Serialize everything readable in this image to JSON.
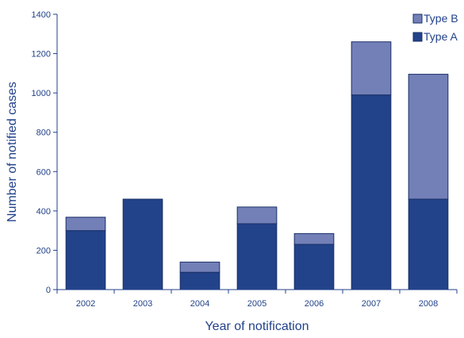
{
  "chart_data": {
    "type": "bar",
    "stacked": true,
    "categories": [
      "2002",
      "2003",
      "2004",
      "2005",
      "2006",
      "2007",
      "2008"
    ],
    "series": [
      {
        "name": "Type A",
        "color": "#22428a",
        "values": [
          300,
          460,
          88,
          335,
          230,
          990,
          460
        ]
      },
      {
        "name": "Type B",
        "color": "#7380b8",
        "values": [
          68,
          0,
          52,
          85,
          55,
          270,
          635
        ]
      }
    ],
    "title": "",
    "xlabel": "Year of notification",
    "ylabel": "Number of notified cases",
    "ylim": [
      0,
      1400
    ],
    "yticks": [
      0,
      200,
      400,
      600,
      800,
      1000,
      1200,
      1400
    ],
    "grid": false,
    "legend_position": "top-right",
    "legend_order": [
      "Type B",
      "Type A"
    ],
    "colors": {
      "axis": "#22428a",
      "text": "#22428a",
      "bar_edge": "#1a2f66"
    }
  }
}
